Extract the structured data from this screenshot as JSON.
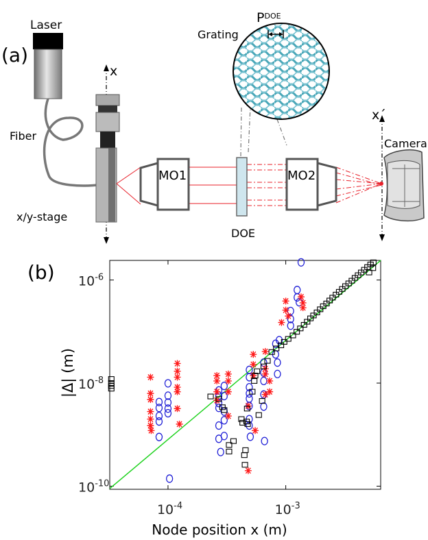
{
  "panel_a": {
    "label": "(a)",
    "laser": "Laser",
    "fiber": "Fiber",
    "stage": "x/y-stage",
    "x_axis": "x",
    "mo1": "MO1",
    "mo2": "MO2",
    "doe": "DOE",
    "grating": "Grating",
    "p_base": "P",
    "p_sup": "DOE",
    "x_prime": "x´",
    "camera": "Camera"
  },
  "panel_b": {
    "label": "(b)"
  },
  "colors": {
    "laser_beam": "#e8202a",
    "circle": "#1f1fd6",
    "star": "#ff1a1a",
    "square": "#000000",
    "line": "#1ed21e",
    "grating": "#4aa7b8"
  },
  "chart_data": {
    "type": "scatter",
    "xscale": "log",
    "yscale": "log",
    "xlabel": "Node position x (m)",
    "ylabel": "|Δ| (m)",
    "xlim": [
      3.2e-05,
      0.0064
    ],
    "ylim": [
      8.7e-11,
      2.4e-06
    ],
    "xticks": [
      {
        "base": "10",
        "exp": "-4",
        "value": 0.0001
      },
      {
        "base": "10",
        "exp": "-3",
        "value": 0.001
      }
    ],
    "yticks": [
      {
        "base": "10",
        "exp": "-10",
        "value": 1e-10
      },
      {
        "base": "10",
        "exp": "-8",
        "value": 1e-08
      },
      {
        "base": "10",
        "exp": "-6",
        "value": 1e-06
      }
    ],
    "reference_line": {
      "x": [
        3.2e-05,
        0.0064
      ],
      "y": [
        9e-11,
        2.4e-06
      ]
    },
    "series": [
      {
        "marker": "circle",
        "points": [
          [
            8.4e-05,
            4.3e-09
          ],
          [
            8.4e-05,
            3.3e-09
          ],
          [
            8.4e-05,
            2.3e-09
          ],
          [
            8.4e-05,
            1.8e-09
          ],
          [
            8.4e-05,
            9e-10
          ],
          [
            0.0001,
            9.9e-09
          ],
          [
            0.0001,
            5.7e-09
          ],
          [
            0.0001,
            4.2e-09
          ],
          [
            0.0001,
            3.2e-09
          ],
          [
            0.0001,
            2.6e-09
          ],
          [
            0.000103,
            1.4e-10
          ],
          [
            0.00027,
            7.2e-09
          ],
          [
            0.00027,
            5.7e-09
          ],
          [
            0.00027,
            4.1e-09
          ],
          [
            0.00027,
            3.3e-09
          ],
          [
            0.00027,
            1.5e-09
          ],
          [
            0.00027,
            8.3e-10
          ],
          [
            0.00028,
            4.6e-10
          ],
          [
            0.0003,
            8.8e-09
          ],
          [
            0.0003,
            5.6e-09
          ],
          [
            0.0003,
            2.8e-09
          ],
          [
            0.0003,
            1.9e-09
          ],
          [
            0.0003,
            9.4e-10
          ],
          [
            0.00049,
            1.8e-08
          ],
          [
            0.00049,
            1.3e-08
          ],
          [
            0.00049,
            8.3e-09
          ],
          [
            0.00049,
            6.3e-09
          ],
          [
            0.00049,
            5e-09
          ],
          [
            0.00049,
            3.6e-09
          ],
          [
            0.00049,
            2e-09
          ],
          [
            0.00049,
            1.5e-09
          ],
          [
            0.0005,
            9.1e-10
          ],
          [
            0.00065,
            2.5e-08
          ],
          [
            0.00065,
            1.6e-08
          ],
          [
            0.00065,
            1.1e-08
          ],
          [
            0.00065,
            6e-09
          ],
          [
            0.00065,
            3.5e-09
          ],
          [
            0.00066,
            7.5e-10
          ],
          [
            0.00082,
            5.8e-08
          ],
          [
            0.00082,
            3.6e-08
          ],
          [
            0.00085,
            2.5e-08
          ],
          [
            0.00085,
            1.5e-08
          ],
          [
            0.00088,
            6.8e-08
          ],
          [
            0.0011,
            2.5e-07
          ],
          [
            0.0011,
            1.75e-07
          ],
          [
            0.0011,
            1.3e-07
          ],
          [
            0.00125,
            6.4e-07
          ],
          [
            0.00125,
            4.6e-07
          ],
          [
            0.0013,
            3.7e-07
          ],
          [
            0.00135,
            2.2e-06
          ]
        ]
      },
      {
        "marker": "star",
        "points": [
          [
            7.1e-05,
            1.3e-08
          ],
          [
            7.1e-05,
            6.3e-09
          ],
          [
            7.1e-05,
            4.8e-09
          ],
          [
            7.1e-05,
            2.8e-09
          ],
          [
            7.1e-05,
            2e-09
          ],
          [
            7.1e-05,
            1.5e-09
          ],
          [
            7.2e-05,
            1.2e-09
          ],
          [
            0.00012,
            2.4e-08
          ],
          [
            0.00012,
            1.7e-08
          ],
          [
            0.00012,
            1.3e-08
          ],
          [
            0.00012,
            8.3e-09
          ],
          [
            0.00012,
            6.8e-09
          ],
          [
            0.00012,
            3.2e-09
          ],
          [
            0.000125,
            1.6e-09
          ],
          [
            0.00026,
            1.4e-08
          ],
          [
            0.00026,
            1.1e-08
          ],
          [
            0.00026,
            6.8e-09
          ],
          [
            0.00026,
            4.6e-09
          ],
          [
            0.000325,
            1.5e-08
          ],
          [
            0.000325,
            1.1e-08
          ],
          [
            0.000325,
            6.8e-09
          ],
          [
            0.000325,
            2.3e-09
          ],
          [
            0.00048,
            3.6e-09
          ],
          [
            0.00048,
            2e-10
          ],
          [
            0.00053,
            3.6e-08
          ],
          [
            0.00053,
            2.3e-08
          ],
          [
            0.00053,
            1.4e-08
          ],
          [
            0.00055,
            1.2e-09
          ],
          [
            0.00067,
            4.1e-08
          ],
          [
            0.00067,
            1.9e-08
          ],
          [
            0.00067,
            1.5e-08
          ],
          [
            0.00067,
            6e-09
          ],
          [
            0.00073,
            1.1e-08
          ],
          [
            0.00073,
            6.8e-09
          ],
          [
            0.00092,
            1.5e-07
          ],
          [
            0.001,
            3.9e-07
          ],
          [
            0.001,
            2.6e-07
          ],
          [
            0.00105,
            2e-07
          ],
          [
            0.00135,
            4.7e-07
          ],
          [
            0.0014,
            3.6e-07
          ],
          [
            0.0014,
            2.9e-07
          ]
        ]
      },
      {
        "marker": "square",
        "points": [
          [
            3.3e-05,
            1.2e-08
          ],
          [
            3.3e-05,
            1e-08
          ],
          [
            3.3e-05,
            8.8e-09
          ],
          [
            3.3e-05,
            7.8e-09
          ],
          [
            0.00023,
            5.5e-09
          ],
          [
            0.00027,
            4.9e-09
          ],
          [
            0.00029,
            3.4e-09
          ],
          [
            0.0003,
            3e-09
          ],
          [
            0.00033,
            6.3e-10
          ],
          [
            0.00033,
            4.7e-10
          ],
          [
            0.00036,
            7.5e-10
          ],
          [
            0.00042,
            2e-09
          ],
          [
            0.00043,
            1.7e-09
          ],
          [
            0.000445,
            4e-10
          ],
          [
            0.00045,
            2.6e-10
          ],
          [
            0.000455,
            5e-10
          ],
          [
            0.000465,
            1.8e-09
          ],
          [
            0.00047,
            3.2e-09
          ],
          [
            0.000475,
            1.6e-09
          ],
          [
            0.00052,
            6.8e-09
          ],
          [
            0.00054,
            1.1e-08
          ],
          [
            0.00055,
            1.4e-08
          ],
          [
            0.00057,
            1.7e-08
          ],
          [
            0.00059,
            2.4e-09
          ],
          [
            0.00063,
            4.5e-09
          ],
          [
            0.00065,
            2.1e-08
          ],
          [
            0.0007,
            2.7e-08
          ],
          [
            0.00076,
            4e-08
          ],
          [
            0.00083,
            4.7e-08
          ],
          [
            0.00091,
            5.4e-08
          ],
          [
            0.00097,
            6.3e-08
          ],
          [
            0.00105,
            7.2e-08
          ],
          [
            0.00115,
            8.4e-08
          ],
          [
            0.00124,
            9.9e-08
          ],
          [
            0.00133,
            1.15e-07
          ],
          [
            0.00143,
            1.35e-07
          ],
          [
            0.00152,
            1.55e-07
          ],
          [
            0.00162,
            1.8e-07
          ],
          [
            0.00172,
            2.05e-07
          ],
          [
            0.00184,
            2.35e-07
          ],
          [
            0.00196,
            2.7e-07
          ],
          [
            0.00208,
            3.1e-07
          ],
          [
            0.00222,
            3.5e-07
          ],
          [
            0.00236,
            4e-07
          ],
          [
            0.0025,
            4.55e-07
          ],
          [
            0.00267,
            5.2e-07
          ],
          [
            0.00284,
            5.9e-07
          ],
          [
            0.00302,
            6.7e-07
          ],
          [
            0.00321,
            7.6e-07
          ],
          [
            0.00342,
            8.6e-07
          ],
          [
            0.00364,
            9.7e-07
          ],
          [
            0.00387,
            1.1e-06
          ],
          [
            0.00411,
            1.24e-06
          ],
          [
            0.00437,
            1.4e-06
          ],
          [
            0.00465,
            1.58e-06
          ],
          [
            0.00494,
            1.78e-06
          ],
          [
            0.00525,
            2e-06
          ],
          [
            0.00555,
            2.2e-06
          ],
          [
            0.0051,
            1.4e-06
          ],
          [
            0.0055,
            1.7e-06
          ]
        ]
      }
    ]
  }
}
